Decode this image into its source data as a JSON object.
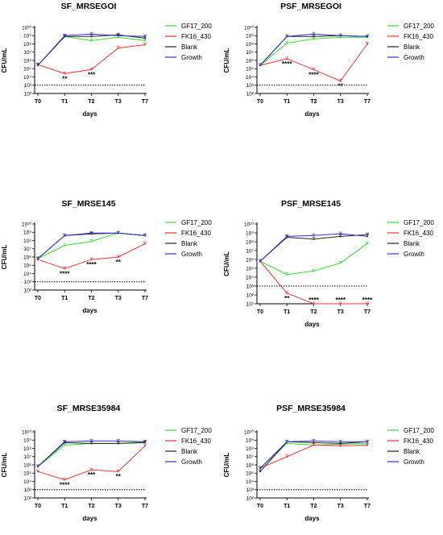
{
  "chart_data": [
    {
      "type": "line",
      "title": "SF_MRSEGOI",
      "ylabel": "CFU/mL",
      "xlabel": "days",
      "categories": [
        "T0",
        "T1",
        "T2",
        "T3",
        "T7"
      ],
      "y_scale": "log",
      "ylim_exp": [
        2,
        10
      ],
      "limit_of_detection_exp": 3,
      "series": [
        {
          "name": "GF17_200",
          "color": "#33dd33",
          "log_values": [
            5.4,
            8.9,
            8.4,
            8.8,
            8.4
          ]
        },
        {
          "name": "FK16_430",
          "color": "#ee3333",
          "log_values": [
            5.5,
            4.4,
            4.9,
            7.5,
            7.9
          ]
        },
        {
          "name": "Blank",
          "color": "#222222",
          "log_values": [
            5.4,
            8.9,
            8.9,
            9.1,
            8.7
          ]
        },
        {
          "name": "Growth",
          "color": "#3333cc",
          "log_values": [
            5.4,
            9.0,
            9.2,
            9.0,
            8.9
          ]
        }
      ],
      "annotations": [
        {
          "x": "T1",
          "text": "**"
        },
        {
          "x": "T2",
          "text": "***"
        }
      ]
    },
    {
      "type": "line",
      "title": "PSF_MRSEGOI",
      "ylabel": "CFU/mL",
      "xlabel": "days",
      "categories": [
        "T0",
        "T1",
        "T2",
        "T3",
        "T7"
      ],
      "y_scale": "log",
      "ylim_exp": [
        2,
        10
      ],
      "limit_of_detection_exp": 3,
      "series": [
        {
          "name": "GF17_200",
          "color": "#33dd33",
          "log_values": [
            5.4,
            8.1,
            8.6,
            8.8,
            8.8
          ]
        },
        {
          "name": "FK16_430",
          "color": "#ee3333",
          "log_values": [
            5.4,
            6.2,
            4.9,
            3.5,
            8.0
          ]
        },
        {
          "name": "Blank",
          "color": "#222222",
          "log_values": [
            5.4,
            8.9,
            8.9,
            9.0,
            8.9
          ]
        },
        {
          "name": "Growth",
          "color": "#3333cc",
          "log_values": [
            5.4,
            8.9,
            9.2,
            9.0,
            8.9
          ]
        }
      ],
      "annotations": [
        {
          "x": "T1",
          "text": "****"
        },
        {
          "x": "T2",
          "text": "****"
        },
        {
          "x": "T3",
          "text": "**"
        }
      ]
    },
    {
      "type": "line",
      "title": "SF_MRSE145",
      "ylabel": "CFU/mL",
      "xlabel": "days",
      "categories": [
        "T0",
        "T1",
        "T2",
        "T3",
        "T7"
      ],
      "y_scale": "log",
      "ylim_exp": [
        2,
        10
      ],
      "limit_of_detection_exp": 3,
      "series": [
        {
          "name": "GF17_200",
          "color": "#33dd33",
          "log_values": [
            5.8,
            7.4,
            7.9,
            8.9,
            8.6
          ]
        },
        {
          "name": "FK16_430",
          "color": "#ee3333",
          "log_values": [
            5.7,
            4.6,
            5.7,
            6.0,
            7.6
          ]
        },
        {
          "name": "Blank",
          "color": "#222222",
          "log_values": [
            5.8,
            8.6,
            8.8,
            8.9,
            8.6
          ]
        },
        {
          "name": "Growth",
          "color": "#3333cc",
          "log_values": [
            5.8,
            8.6,
            8.9,
            8.9,
            8.6
          ]
        }
      ],
      "annotations": [
        {
          "x": "T1",
          "text": "****"
        },
        {
          "x": "T2",
          "text": "****"
        },
        {
          "x": "T3",
          "text": "**"
        }
      ]
    },
    {
      "type": "line",
      "title": "PSF_MRSE145",
      "ylabel": "CFU/mL",
      "xlabel": "days",
      "categories": [
        "T0",
        "T1",
        "T2",
        "T3",
        "T7"
      ],
      "y_scale": "log",
      "ylim_exp": [
        1,
        10
      ],
      "limit_of_detection_exp": 3,
      "series": [
        {
          "name": "GF17_200",
          "color": "#33dd33",
          "log_values": [
            5.8,
            4.3,
            4.7,
            5.6,
            7.8
          ]
        },
        {
          "name": "FK16_430",
          "color": "#ee3333",
          "log_values": [
            5.8,
            2.2,
            1.0,
            1.0,
            1.0
          ]
        },
        {
          "name": "Blank",
          "color": "#222222",
          "log_values": [
            5.8,
            8.5,
            8.3,
            8.6,
            8.8
          ]
        },
        {
          "name": "Growth",
          "color": "#3333cc",
          "log_values": [
            5.8,
            8.6,
            8.7,
            8.9,
            8.6
          ]
        }
      ],
      "annotations": [
        {
          "x": "T1",
          "text": "**"
        },
        {
          "x": "T2",
          "text": "****"
        },
        {
          "x": "T3",
          "text": "****"
        },
        {
          "x": "T7",
          "text": "****"
        }
      ]
    },
    {
      "type": "line",
      "title": "SF_MRSE35984",
      "ylabel": "CFU/mL",
      "xlabel": "days",
      "categories": [
        "T0",
        "T1",
        "T2",
        "T3",
        "T7"
      ],
      "y_scale": "log",
      "ylim_exp": [
        2,
        10
      ],
      "limit_of_detection_exp": 3,
      "series": [
        {
          "name": "GF17_200",
          "color": "#33dd33",
          "log_values": [
            5.8,
            8.4,
            8.6,
            8.6,
            8.8
          ]
        },
        {
          "name": "FK16_430",
          "color": "#ee3333",
          "log_values": [
            5.2,
            4.2,
            5.4,
            5.2,
            8.3
          ]
        },
        {
          "name": "Blank",
          "color": "#222222",
          "log_values": [
            5.8,
            8.7,
            8.6,
            8.6,
            8.7
          ]
        },
        {
          "name": "Growth",
          "color": "#3333cc",
          "log_values": [
            5.8,
            8.8,
            8.9,
            8.9,
            8.8
          ]
        }
      ],
      "annotations": [
        {
          "x": "T1",
          "text": "****"
        },
        {
          "x": "T2",
          "text": "***"
        },
        {
          "x": "T3",
          "text": "**"
        }
      ]
    },
    {
      "type": "line",
      "title": "PSF_MRSE35984",
      "ylabel": "CFU/mL",
      "xlabel": "days",
      "categories": [
        "T0",
        "T1",
        "T2",
        "T3",
        "T7"
      ],
      "y_scale": "log",
      "ylim_exp": [
        2,
        10
      ],
      "limit_of_detection_exp": 3,
      "series": [
        {
          "name": "GF17_200",
          "color": "#33dd33",
          "log_values": [
            5.6,
            8.6,
            8.4,
            8.5,
            8.6
          ]
        },
        {
          "name": "FK16_430",
          "color": "#ee3333",
          "log_values": [
            5.6,
            7.0,
            8.4,
            8.3,
            8.4
          ]
        },
        {
          "name": "Blank",
          "color": "#222222",
          "log_values": [
            5.2,
            8.8,
            8.7,
            8.6,
            8.8
          ]
        },
        {
          "name": "Growth",
          "color": "#3333cc",
          "log_values": [
            5.6,
            8.8,
            8.9,
            8.8,
            8.8
          ]
        }
      ],
      "annotations": []
    }
  ]
}
